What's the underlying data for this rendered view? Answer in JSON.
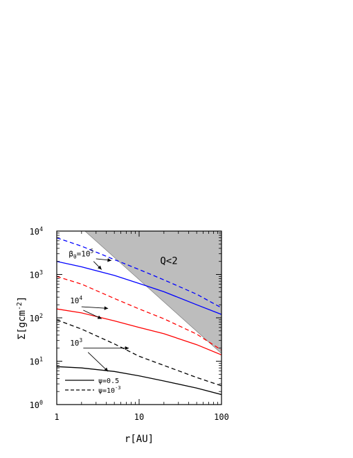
{
  "chart_data": {
    "type": "line",
    "xscale": "log",
    "yscale": "log",
    "xlim": [
      1,
      100
    ],
    "ylim": [
      1,
      10000
    ],
    "xlabel": "r[AU]",
    "ylabel": "Σ[gcm⁻²]",
    "xticks": [
      {
        "value": 1,
        "label": "1"
      },
      {
        "value": 10,
        "label": "10"
      },
      {
        "value": 100,
        "label": "100"
      }
    ],
    "yticks": [
      {
        "value": 1,
        "base": "10",
        "exp": "0"
      },
      {
        "value": 10,
        "base": "10",
        "exp": "1"
      },
      {
        "value": 100,
        "base": "10",
        "exp": "2"
      },
      {
        "value": 1000,
        "base": "10",
        "exp": "3"
      },
      {
        "value": 10000,
        "base": "10",
        "exp": "4"
      }
    ],
    "shaded_region": {
      "label": "Q<2",
      "color": "#bdbdbd",
      "boundary": [
        [
          2.2,
          10000
        ],
        [
          100,
          15
        ]
      ]
    },
    "series": [
      {
        "color": "#0000ff",
        "dash": false,
        "x": [
          1,
          2,
          5,
          10,
          20,
          50,
          100
        ],
        "y": [
          2000,
          1500,
          950,
          620,
          400,
          200,
          120
        ]
      },
      {
        "color": "#0000ff",
        "dash": true,
        "x": [
          1,
          2,
          5,
          10,
          20,
          50,
          100
        ],
        "y": [
          7000,
          4500,
          2200,
          1300,
          750,
          350,
          170
        ]
      },
      {
        "color": "#ff0000",
        "dash": false,
        "x": [
          1,
          2,
          5,
          10,
          20,
          50,
          100
        ],
        "y": [
          160,
          130,
          85,
          60,
          43,
          24,
          14
        ]
      },
      {
        "color": "#ff0000",
        "dash": true,
        "x": [
          1,
          2,
          5,
          10,
          20,
          50,
          100
        ],
        "y": [
          900,
          600,
          280,
          160,
          95,
          42,
          18
        ]
      },
      {
        "color": "#000000",
        "dash": false,
        "x": [
          1,
          2,
          5,
          10,
          20,
          50,
          100
        ],
        "y": [
          7.5,
          7.0,
          5.8,
          4.6,
          3.5,
          2.4,
          1.7
        ]
      },
      {
        "color": "#000000",
        "dash": true,
        "x": [
          1,
          2,
          5,
          10,
          20,
          50,
          100
        ],
        "y": [
          90,
          55,
          25,
          13,
          8,
          4.2,
          2.7
        ]
      }
    ],
    "annotations": [
      {
        "base": "β",
        "sub": "0",
        "text": "=10",
        "sup": "5",
        "at": [
          1.4,
          2600
        ],
        "arrows": [
          [
            3.0,
            2300,
            4.6,
            2100
          ],
          [
            2.8,
            2000,
            3.5,
            1300
          ]
        ]
      },
      {
        "base": "10",
        "sup": "4",
        "at": [
          1.45,
          215
        ],
        "arrows": [
          [
            2.0,
            180,
            4.2,
            165
          ],
          [
            2.1,
            150,
            3.5,
            95
          ]
        ]
      },
      {
        "base": "10",
        "sup": "3",
        "at": [
          1.45,
          23
        ],
        "arrows": [
          [
            2.1,
            20,
            7.5,
            20
          ],
          [
            2.4,
            16,
            4.2,
            5.8
          ]
        ]
      }
    ],
    "legend": {
      "position": "lower-left",
      "items": [
        {
          "dash": false,
          "text": "ψ=0.5"
        },
        {
          "dash": true,
          "base": "ψ=10",
          "sup": "-3"
        }
      ]
    }
  }
}
